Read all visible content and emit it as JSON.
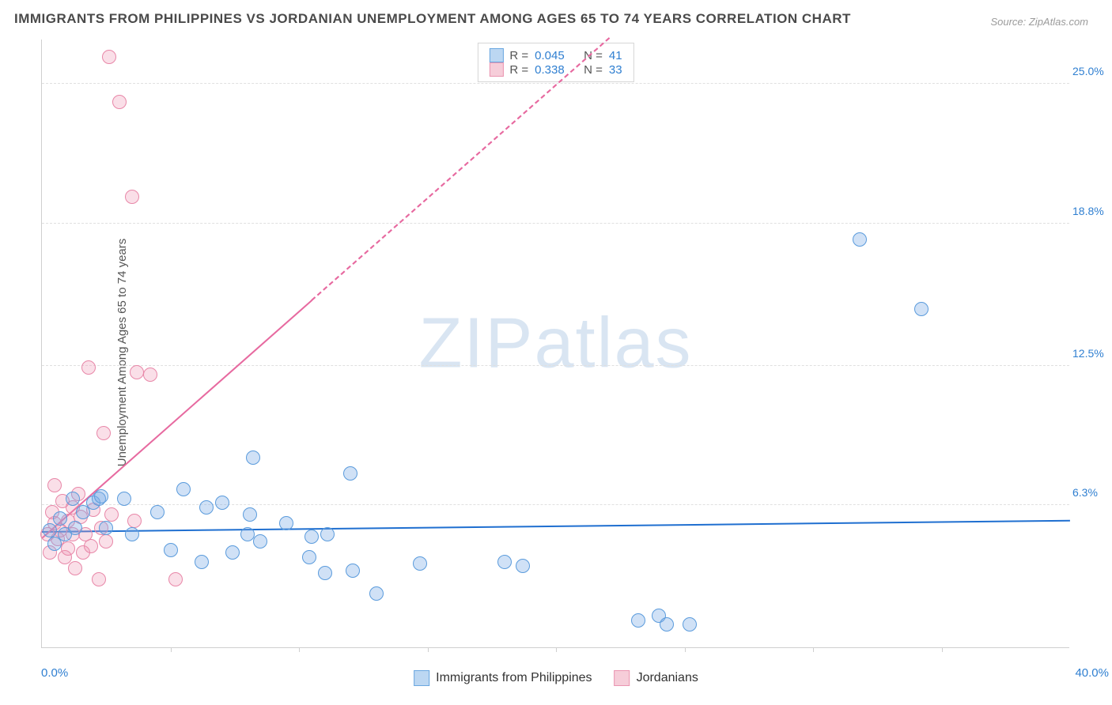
{
  "title": "IMMIGRANTS FROM PHILIPPINES VS JORDANIAN UNEMPLOYMENT AMONG AGES 65 TO 74 YEARS CORRELATION CHART",
  "source": "Source: ZipAtlas.com",
  "ylabel": "Unemployment Among Ages 65 to 74 years",
  "watermark_a": "ZIP",
  "watermark_b": "atlas",
  "chart": {
    "type": "scatter",
    "x_min_label": "0.0%",
    "x_max_label": "40.0%",
    "xlim": [
      0,
      40
    ],
    "ylim": [
      0,
      27
    ],
    "x_min_color": "#2f7fd1",
    "x_max_color": "#2f7fd1",
    "yticks": [
      {
        "v": 6.3,
        "label": "6.3%",
        "color": "#2f7fd1"
      },
      {
        "v": 12.5,
        "label": "12.5%",
        "color": "#2f7fd1"
      },
      {
        "v": 18.8,
        "label": "18.8%",
        "color": "#2f7fd1"
      },
      {
        "v": 25.0,
        "label": "25.0%",
        "color": "#2f7fd1"
      }
    ],
    "xticks_minor": [
      5,
      10,
      15,
      20,
      25,
      30,
      35
    ],
    "marker_radius": 9,
    "marker_border_width": 1.5,
    "series": [
      {
        "name": "Immigrants from Philippines",
        "color_fill": "rgba(120,170,230,0.35)",
        "color_stroke": "#5a9bdc",
        "legend_fill": "#bcd7f2",
        "legend_stroke": "#6aa7e0",
        "R": "0.045",
        "N": "41",
        "trend": {
          "y_at_x0": 5.1,
          "y_at_x1": 5.6,
          "color": "#1f6fd0",
          "width": 2,
          "dashed_after_x": 40
        },
        "points": [
          [
            0.3,
            5.2
          ],
          [
            0.5,
            4.6
          ],
          [
            0.7,
            5.7
          ],
          [
            0.9,
            5.0
          ],
          [
            1.2,
            6.6
          ],
          [
            1.3,
            5.3
          ],
          [
            1.6,
            6.0
          ],
          [
            2.0,
            6.4
          ],
          [
            2.2,
            6.6
          ],
          [
            2.3,
            6.7
          ],
          [
            2.5,
            5.3
          ],
          [
            3.2,
            6.6
          ],
          [
            3.5,
            5.0
          ],
          [
            4.5,
            6.0
          ],
          [
            5.0,
            4.3
          ],
          [
            5.5,
            7.0
          ],
          [
            6.2,
            3.8
          ],
          [
            6.4,
            6.2
          ],
          [
            7.0,
            6.4
          ],
          [
            7.4,
            4.2
          ],
          [
            8.0,
            5.0
          ],
          [
            8.1,
            5.9
          ],
          [
            8.2,
            8.4
          ],
          [
            8.5,
            4.7
          ],
          [
            9.5,
            5.5
          ],
          [
            10.4,
            4.0
          ],
          [
            10.5,
            4.9
          ],
          [
            11.0,
            3.3
          ],
          [
            11.1,
            5.0
          ],
          [
            12.0,
            7.7
          ],
          [
            12.1,
            3.4
          ],
          [
            13.0,
            2.4
          ],
          [
            14.7,
            3.7
          ],
          [
            18.0,
            3.8
          ],
          [
            18.7,
            3.6
          ],
          [
            23.2,
            1.2
          ],
          [
            24.0,
            1.4
          ],
          [
            24.3,
            1.0
          ],
          [
            25.2,
            1.0
          ],
          [
            31.8,
            18.1
          ],
          [
            34.2,
            15.0
          ]
        ]
      },
      {
        "name": "Jordanians",
        "color_fill": "rgba(240,150,180,0.30)",
        "color_stroke": "#e887a8",
        "legend_fill": "#f6cdd9",
        "legend_stroke": "#ea95b1",
        "R": "0.338",
        "N": "33",
        "trend": {
          "y_at_x0": 4.8,
          "y_at_x1": 45.0,
          "color": "#e76aa0",
          "width": 2,
          "dashed_after_x": 10.5
        },
        "points": [
          [
            0.2,
            5.0
          ],
          [
            0.3,
            4.2
          ],
          [
            0.4,
            6.0
          ],
          [
            0.5,
            5.5
          ],
          [
            0.5,
            7.2
          ],
          [
            0.6,
            4.8
          ],
          [
            0.7,
            5.2
          ],
          [
            0.8,
            6.5
          ],
          [
            0.9,
            4.0
          ],
          [
            1.0,
            5.6
          ],
          [
            1.0,
            4.4
          ],
          [
            1.2,
            6.2
          ],
          [
            1.2,
            5.0
          ],
          [
            1.3,
            3.5
          ],
          [
            1.4,
            6.8
          ],
          [
            1.5,
            5.8
          ],
          [
            1.6,
            4.2
          ],
          [
            1.7,
            5.0
          ],
          [
            1.8,
            12.4
          ],
          [
            1.9,
            4.5
          ],
          [
            2.0,
            6.1
          ],
          [
            2.2,
            3.0
          ],
          [
            2.3,
            5.3
          ],
          [
            2.4,
            9.5
          ],
          [
            2.5,
            4.7
          ],
          [
            2.6,
            26.2
          ],
          [
            2.7,
            5.9
          ],
          [
            3.0,
            24.2
          ],
          [
            3.5,
            20.0
          ],
          [
            3.6,
            5.6
          ],
          [
            3.7,
            12.2
          ],
          [
            4.2,
            12.1
          ],
          [
            5.2,
            3.0
          ]
        ]
      }
    ]
  },
  "legend_stats": {
    "r_label": "R =",
    "n_label": "N =",
    "value_color": "#2f7fd1",
    "key_color": "#555555"
  },
  "colors": {
    "title": "#4a4a4a",
    "grid": "#e0e0e0",
    "axis": "#cfcfcf",
    "background": "#ffffff"
  }
}
